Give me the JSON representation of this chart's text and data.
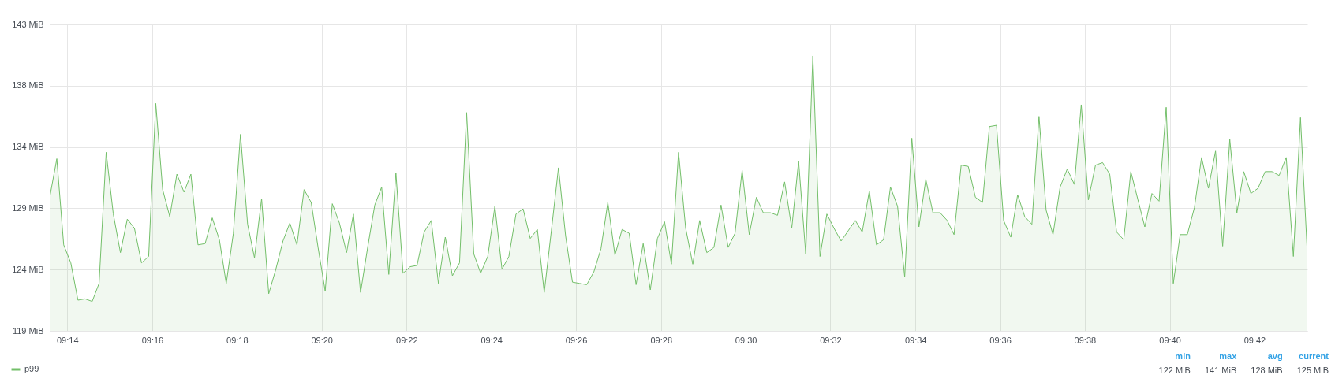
{
  "chart_data": {
    "type": "area",
    "legend": "bottom left",
    "grid": true,
    "ylim": [
      119.21,
      143.05
    ],
    "yticks": [
      {
        "value": 119.21,
        "label": "119 MiB"
      },
      {
        "value": 123.98,
        "label": "124 MiB"
      },
      {
        "value": 128.75,
        "label": "129 MiB"
      },
      {
        "value": 133.51,
        "label": "134 MiB"
      },
      {
        "value": 138.28,
        "label": "138 MiB"
      },
      {
        "value": 143.05,
        "label": "143 MiB"
      }
    ],
    "xlim": [
      9.2264,
      9.7208
    ],
    "xticks": [
      {
        "value": 9.2333,
        "label": "09:14"
      },
      {
        "value": 9.2667,
        "label": "09:16"
      },
      {
        "value": 9.3,
        "label": "09:18"
      },
      {
        "value": 9.3333,
        "label": "09:20"
      },
      {
        "value": 9.3667,
        "label": "09:22"
      },
      {
        "value": 9.4,
        "label": "09:24"
      },
      {
        "value": 9.4333,
        "label": "09:26"
      },
      {
        "value": 9.4667,
        "label": "09:28"
      },
      {
        "value": 9.5,
        "label": "09:30"
      },
      {
        "value": 9.5333,
        "label": "09:32"
      },
      {
        "value": 9.5667,
        "label": "09:34"
      },
      {
        "value": 9.6,
        "label": "09:36"
      },
      {
        "value": 9.6333,
        "label": "09:38"
      },
      {
        "value": 9.6667,
        "label": "09:40"
      },
      {
        "value": 9.7,
        "label": "09:42"
      }
    ],
    "x": [
      9.2264,
      9.2292,
      9.2319,
      9.2347,
      9.2375,
      9.2403,
      9.2431,
      9.2458,
      9.2486,
      9.2514,
      9.2542,
      9.2569,
      9.2597,
      9.2625,
      9.2653,
      9.2681,
      9.2708,
      9.2736,
      9.2764,
      9.2792,
      9.2819,
      9.2847,
      9.2875,
      9.2903,
      9.2931,
      9.2958,
      9.2986,
      9.3014,
      9.3042,
      9.3069,
      9.3097,
      9.3125,
      9.3153,
      9.3181,
      9.3208,
      9.3236,
      9.3264,
      9.3292,
      9.3319,
      9.3347,
      9.3375,
      9.3403,
      9.3431,
      9.3458,
      9.3486,
      9.3514,
      9.3542,
      9.3569,
      9.3597,
      9.3625,
      9.3653,
      9.3681,
      9.3708,
      9.3736,
      9.3764,
      9.3792,
      9.3819,
      9.3847,
      9.3875,
      9.3903,
      9.3931,
      9.3958,
      9.3986,
      9.4014,
      9.4042,
      9.4069,
      9.4097,
      9.4125,
      9.4153,
      9.4181,
      9.4208,
      9.4236,
      9.4264,
      9.4292,
      9.4319,
      9.4347,
      9.4375,
      9.4403,
      9.4431,
      9.4458,
      9.4486,
      9.4514,
      9.4542,
      9.4569,
      9.4597,
      9.4625,
      9.4653,
      9.4681,
      9.4708,
      9.4736,
      9.4764,
      9.4792,
      9.4819,
      9.4847,
      9.4875,
      9.4903,
      9.4931,
      9.4958,
      9.4986,
      9.5014,
      9.5042,
      9.5069,
      9.5097,
      9.5125,
      9.5153,
      9.5181,
      9.5208,
      9.5236,
      9.5264,
      9.5292,
      9.5319,
      9.5347,
      9.5375,
      9.5403,
      9.5431,
      9.5458,
      9.5486,
      9.5514,
      9.5542,
      9.5569,
      9.5597,
      9.5625,
      9.5653,
      9.5681,
      9.5708,
      9.5736,
      9.5764,
      9.5792,
      9.5819,
      9.5847,
      9.5875,
      9.5903,
      9.5931,
      9.5958,
      9.5986,
      9.6014,
      9.6042,
      9.6069,
      9.6097,
      9.6125,
      9.6153,
      9.6181,
      9.6208,
      9.6236,
      9.6264,
      9.6292,
      9.6319,
      9.6347,
      9.6375,
      9.6403,
      9.6431,
      9.6458,
      9.6486,
      9.6514,
      9.6542,
      9.6569,
      9.6597,
      9.6625,
      9.6653,
      9.6681,
      9.6708,
      9.6736,
      9.6764,
      9.6792,
      9.6819,
      9.6847,
      9.6875,
      9.6903,
      9.6931,
      9.6958,
      9.6986,
      9.7014,
      9.7042,
      9.7069,
      9.7097,
      9.7125,
      9.7153,
      9.7181,
      9.7208
    ],
    "series": [
      {
        "name": "p99",
        "color": "#73bf69",
        "values": [
          129.6,
          132.6,
          125.9,
          124.5,
          121.6,
          121.7,
          121.5,
          122.9,
          133.1,
          128.3,
          125.3,
          127.9,
          127.2,
          124.5,
          125.0,
          136.9,
          130.2,
          128.1,
          131.4,
          130.0,
          131.4,
          125.9,
          126.0,
          128.0,
          126.3,
          122.9,
          126.8,
          134.5,
          127.5,
          124.9,
          129.5,
          122.1,
          124.0,
          126.2,
          127.6,
          125.9,
          130.2,
          129.2,
          125.7,
          122.3,
          129.1,
          127.6,
          125.3,
          128.3,
          122.2,
          125.7,
          129.0,
          130.4,
          123.6,
          131.5,
          123.7,
          124.2,
          124.3,
          126.9,
          127.8,
          122.9,
          126.5,
          123.5,
          124.5,
          136.2,
          125.2,
          123.7,
          125.0,
          128.9,
          124.0,
          125.0,
          128.3,
          128.7,
          126.4,
          127.1,
          122.2,
          127.0,
          131.9,
          126.6,
          123.0,
          122.9,
          122.8,
          123.8,
          125.6,
          129.2,
          125.1,
          127.1,
          126.8,
          122.8,
          126.0,
          122.4,
          126.4,
          127.7,
          124.4,
          133.1,
          127.2,
          124.4,
          127.8,
          125.3,
          125.7,
          129.0,
          125.7,
          126.8,
          131.7,
          126.7,
          129.6,
          128.4,
          128.4,
          128.2,
          130.8,
          127.2,
          132.4,
          125.2,
          140.6,
          125.0,
          128.3,
          127.2,
          126.2,
          127.0,
          127.8,
          126.9,
          130.1,
          125.9,
          126.3,
          130.4,
          128.9,
          123.4,
          134.2,
          127.3,
          131.0,
          128.4,
          128.4,
          127.8,
          126.7,
          132.1,
          132.0,
          129.6,
          129.2,
          135.1,
          135.2,
          127.8,
          126.5,
          129.8,
          128.1,
          127.5,
          135.9,
          128.6,
          126.7,
          130.4,
          131.8,
          130.6,
          136.8,
          129.4,
          132.1,
          132.3,
          131.4,
          126.9,
          126.3,
          131.6,
          129.4,
          127.3,
          129.9,
          129.3,
          136.6,
          122.9,
          126.7,
          126.7,
          128.8,
          132.7,
          130.3,
          133.2,
          125.8,
          134.1,
          128.4,
          131.6,
          129.9,
          130.3,
          131.6,
          131.6,
          131.3,
          132.7,
          125.0,
          135.8,
          125.2
        ]
      }
    ],
    "annotations": [
      "min",
      "max",
      "avg",
      "current",
      "122 MiB",
      "141 MiB",
      "128 MiB",
      "125 MiB"
    ]
  }
}
